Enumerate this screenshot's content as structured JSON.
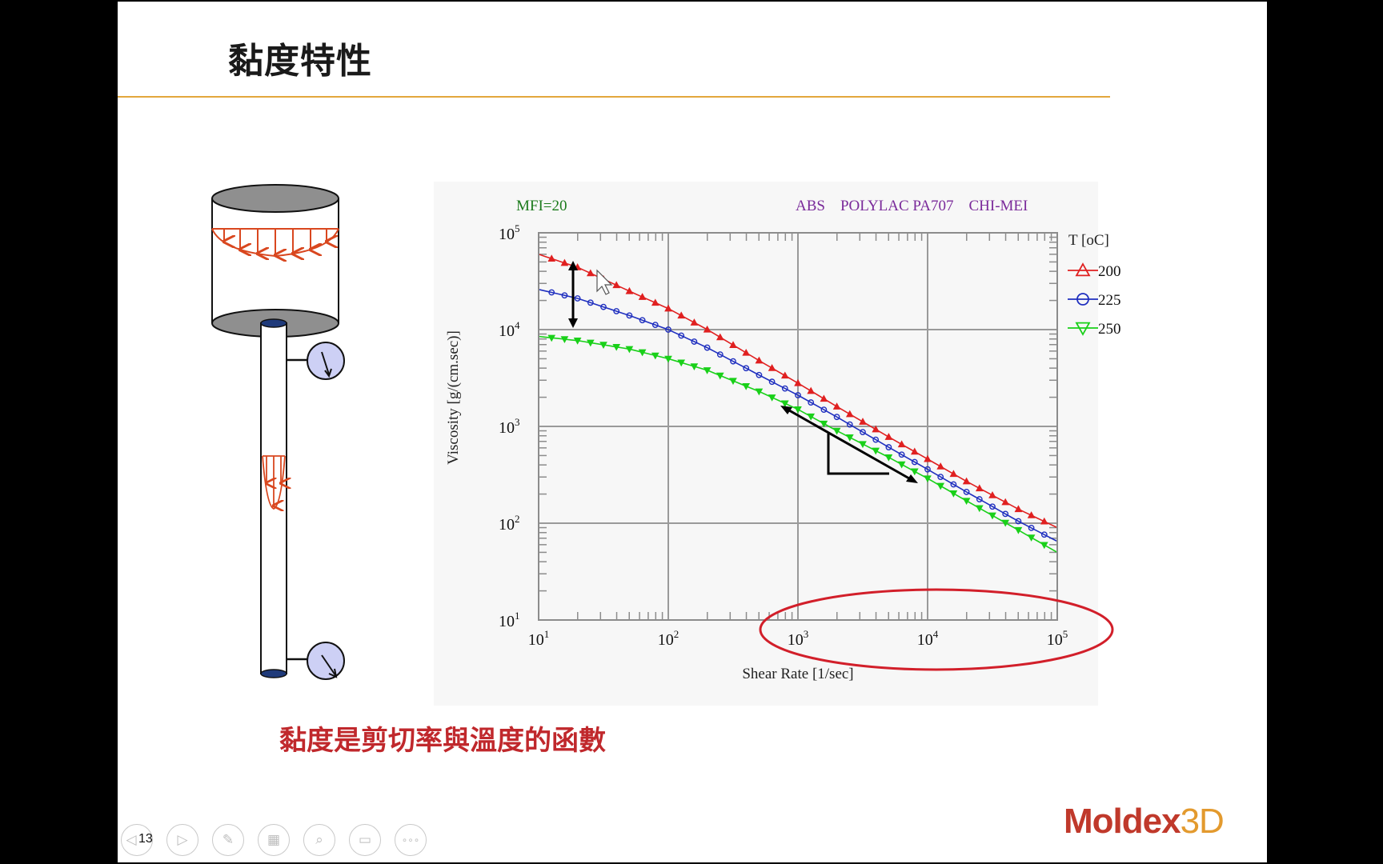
{
  "slide": {
    "title": "黏度特性",
    "caption": "黏度是剪切率與溫度的函數",
    "page_number": "13",
    "logo_primary": "Moldex",
    "logo_accent": "3D"
  },
  "controls": [
    {
      "name": "previous-slide-button",
      "glyph": "◁"
    },
    {
      "name": "next-slide-button",
      "glyph": "▷"
    },
    {
      "name": "pen-button",
      "glyph": "✎"
    },
    {
      "name": "slides-overview-button",
      "glyph": "▦"
    },
    {
      "name": "zoom-button",
      "glyph": "⌕"
    },
    {
      "name": "subtitles-button",
      "glyph": "▭"
    },
    {
      "name": "more-options-button",
      "glyph": "∘∘∘"
    }
  ],
  "chart_data": {
    "type": "line",
    "title": "ABS    POLYLAC PA707    CHI-MEI",
    "annotation": "MFI=20",
    "xlabel": "Shear Rate [1/sec]",
    "ylabel": "Viscosity [g/(cm.sec)]",
    "x_scale": "log",
    "y_scale": "log",
    "xlim": [
      10,
      100000
    ],
    "ylim": [
      10,
      100000
    ],
    "x_ticks": [
      10,
      100,
      1000,
      10000,
      100000
    ],
    "y_ticks": [
      10,
      100,
      1000,
      10000,
      100000
    ],
    "grid": true,
    "legend_title": "T [oC]",
    "legend_position": "right",
    "series": [
      {
        "name": "200",
        "marker": "triangle-up",
        "color": "#e02020",
        "x": [
          10,
          20,
          50,
          100,
          200,
          500,
          1000,
          2000,
          5000,
          10000,
          20000,
          50000,
          100000
        ],
        "y": [
          60000,
          44000,
          25000,
          16500,
          10000,
          4800,
          2800,
          1600,
          780,
          460,
          270,
          140,
          90
        ]
      },
      {
        "name": "225",
        "marker": "circle",
        "color": "#1f2fbf",
        "x": [
          10,
          20,
          50,
          100,
          200,
          500,
          1000,
          2000,
          5000,
          10000,
          20000,
          50000,
          100000
        ],
        "y": [
          26000,
          21000,
          14000,
          10000,
          6500,
          3400,
          2100,
          1250,
          610,
          360,
          210,
          105,
          65
        ]
      },
      {
        "name": "250",
        "marker": "triangle-down",
        "color": "#19d019",
        "x": [
          10,
          20,
          50,
          100,
          200,
          500,
          1000,
          2000,
          5000,
          10000,
          20000,
          50000,
          100000
        ],
        "y": [
          8500,
          7700,
          6300,
          5000,
          3800,
          2300,
          1500,
          900,
          480,
          290,
          170,
          85,
          50
        ]
      }
    ]
  }
}
